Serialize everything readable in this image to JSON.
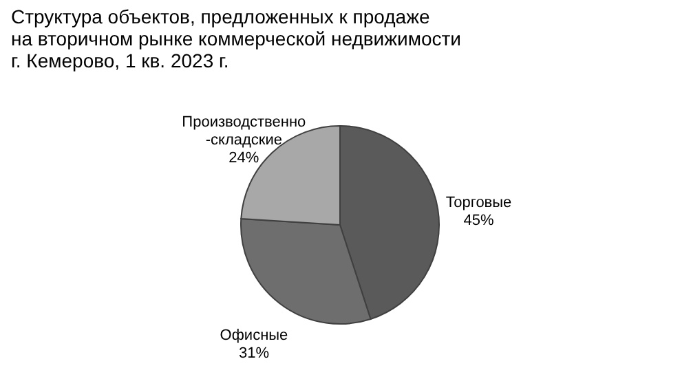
{
  "chart_data": {
    "type": "pie",
    "title": "Структура объектов, предложенных к продаже\nна вторичном рынке коммерческой недвижимости\nг. Кемерово, 1 кв. 2023 г.",
    "categories": [
      "Торговые",
      "Офисные",
      "Производственно-складские"
    ],
    "values": [
      45,
      31,
      24
    ],
    "colors": [
      "#5a5a5a",
      "#6e6e6e",
      "#a8a8a8"
    ],
    "value_labels": [
      "45%",
      "31%",
      "24%"
    ],
    "legend": false
  }
}
